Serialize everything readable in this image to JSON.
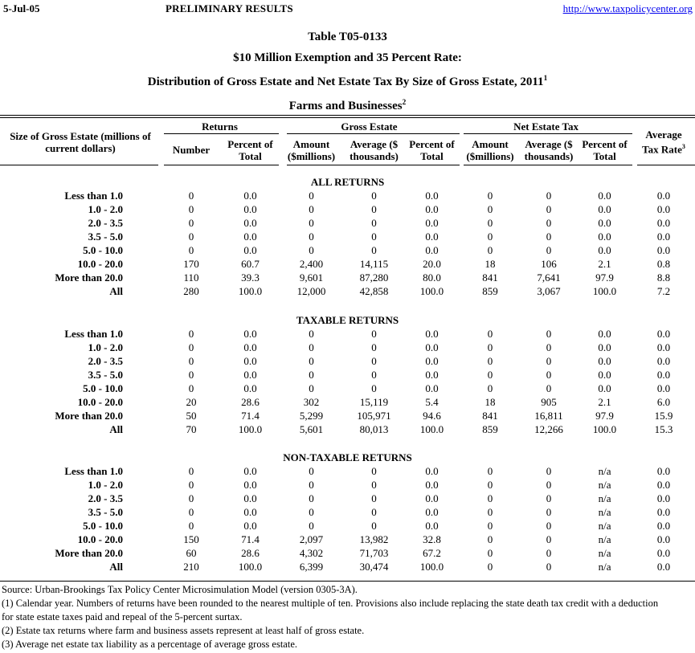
{
  "page": {
    "date": "5-Jul-05",
    "status": "PRELIMINARY RESULTS",
    "url": "http://www.taxpolicycenter.org"
  },
  "title": {
    "table_number": "Table T05-0133",
    "subtitle1": "$10 Million Exemption and 35 Percent Rate:",
    "subtitle2": "Distribution of Gross Estate and Net Estate Tax By Size of Gross Estate, 2011",
    "subtitle2_sup": "1",
    "subtitle3": "Farms and Businesses",
    "subtitle3_sup": "2"
  },
  "table": {
    "size_column_header": "Size of Gross Estate (millions of\ncurrent dollars)",
    "group_headers": {
      "returns": "Returns",
      "gross_estate": "Gross Estate",
      "net_estate_tax": "Net Estate Tax"
    },
    "sub_headers": {
      "number": "Number",
      "percent_of_total": "Percent of\nTotal",
      "amount_millions": "Amount\n($millions)",
      "average_thousands": "Average ($\nthousands)"
    },
    "average_tax_rate_header": "Average\nTax Rate",
    "average_tax_rate_sup": "3",
    "sections": [
      {
        "label": "ALL RETURNS",
        "rows": [
          [
            "Less than 1.0",
            "0",
            "0.0",
            "0",
            "0",
            "0.0",
            "0",
            "0",
            "0.0",
            "0.0"
          ],
          [
            "1.0 - 2.0",
            "0",
            "0.0",
            "0",
            "0",
            "0.0",
            "0",
            "0",
            "0.0",
            "0.0"
          ],
          [
            "2.0 - 3.5",
            "0",
            "0.0",
            "0",
            "0",
            "0.0",
            "0",
            "0",
            "0.0",
            "0.0"
          ],
          [
            "3.5 - 5.0",
            "0",
            "0.0",
            "0",
            "0",
            "0.0",
            "0",
            "0",
            "0.0",
            "0.0"
          ],
          [
            "5.0 - 10.0",
            "0",
            "0.0",
            "0",
            "0",
            "0.0",
            "0",
            "0",
            "0.0",
            "0.0"
          ],
          [
            "10.0 - 20.0",
            "170",
            "60.7",
            "2,400",
            "14,115",
            "20.0",
            "18",
            "106",
            "2.1",
            "0.8"
          ],
          [
            "More than 20.0",
            "110",
            "39.3",
            "9,601",
            "87,280",
            "80.0",
            "841",
            "7,641",
            "97.9",
            "8.8"
          ],
          [
            "All",
            "280",
            "100.0",
            "12,000",
            "42,858",
            "100.0",
            "859",
            "3,067",
            "100.0",
            "7.2"
          ]
        ]
      },
      {
        "label": "TAXABLE RETURNS",
        "rows": [
          [
            "Less than 1.0",
            "0",
            "0.0",
            "0",
            "0",
            "0.0",
            "0",
            "0",
            "0.0",
            "0.0"
          ],
          [
            "1.0 - 2.0",
            "0",
            "0.0",
            "0",
            "0",
            "0.0",
            "0",
            "0",
            "0.0",
            "0.0"
          ],
          [
            "2.0 - 3.5",
            "0",
            "0.0",
            "0",
            "0",
            "0.0",
            "0",
            "0",
            "0.0",
            "0.0"
          ],
          [
            "3.5 - 5.0",
            "0",
            "0.0",
            "0",
            "0",
            "0.0",
            "0",
            "0",
            "0.0",
            "0.0"
          ],
          [
            "5.0 - 10.0",
            "0",
            "0.0",
            "0",
            "0",
            "0.0",
            "0",
            "0",
            "0.0",
            "0.0"
          ],
          [
            "10.0 - 20.0",
            "20",
            "28.6",
            "302",
            "15,119",
            "5.4",
            "18",
            "905",
            "2.1",
            "6.0"
          ],
          [
            "More than 20.0",
            "50",
            "71.4",
            "5,299",
            "105,971",
            "94.6",
            "841",
            "16,811",
            "97.9",
            "15.9"
          ],
          [
            "All",
            "70",
            "100.0",
            "5,601",
            "80,013",
            "100.0",
            "859",
            "12,266",
            "100.0",
            "15.3"
          ]
        ]
      },
      {
        "label": "NON-TAXABLE RETURNS",
        "rows": [
          [
            "Less than 1.0",
            "0",
            "0.0",
            "0",
            "0",
            "0.0",
            "0",
            "0",
            "n/a",
            "0.0"
          ],
          [
            "1.0 - 2.0",
            "0",
            "0.0",
            "0",
            "0",
            "0.0",
            "0",
            "0",
            "n/a",
            "0.0"
          ],
          [
            "2.0 - 3.5",
            "0",
            "0.0",
            "0",
            "0",
            "0.0",
            "0",
            "0",
            "n/a",
            "0.0"
          ],
          [
            "3.5 - 5.0",
            "0",
            "0.0",
            "0",
            "0",
            "0.0",
            "0",
            "0",
            "n/a",
            "0.0"
          ],
          [
            "5.0 - 10.0",
            "0",
            "0.0",
            "0",
            "0",
            "0.0",
            "0",
            "0",
            "n/a",
            "0.0"
          ],
          [
            "10.0 - 20.0",
            "150",
            "71.4",
            "2,097",
            "13,982",
            "32.8",
            "0",
            "0",
            "n/a",
            "0.0"
          ],
          [
            "More than 20.0",
            "60",
            "28.6",
            "4,302",
            "71,703",
            "67.2",
            "0",
            "0",
            "n/a",
            "0.0"
          ],
          [
            "All",
            "210",
            "100.0",
            "6,399",
            "30,474",
            "100.0",
            "0",
            "0",
            "n/a",
            "0.0"
          ]
        ]
      }
    ]
  },
  "footnotes": {
    "source": "Source: Urban-Brookings Tax Policy Center Microsimulation Model (version 0305-3A).",
    "note1": "(1) Calendar year. Numbers of returns have been rounded to the nearest multiple of ten. Provisions also include replacing the state death tax credit with a deduction for state estate taxes paid and repeal of the 5-percent surtax.",
    "note2": "(2) Estate tax returns where farm and business assets represent at least half of gross estate.",
    "note3": "(3) Average net estate tax liability as a percentage of average gross estate."
  },
  "colors": {
    "link": "#0000EE",
    "text": "#000000"
  }
}
